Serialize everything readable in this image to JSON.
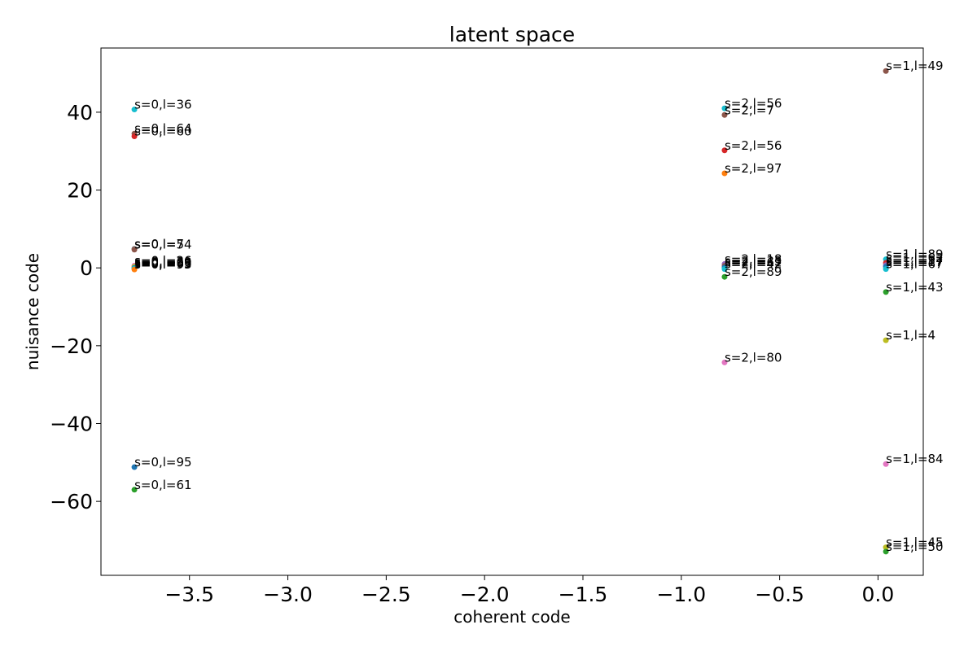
{
  "chart_data": {
    "type": "scatter",
    "title": "latent space",
    "xlabel": "coherent code",
    "ylabel": "nuisance code",
    "xlim": [
      -3.95,
      0.23
    ],
    "ylim": [
      -79,
      56.5
    ],
    "xticks": [
      -3.5,
      -3.0,
      -2.5,
      -2.0,
      -1.5,
      -1.0,
      -0.5,
      0.0
    ],
    "xtick_labels": [
      "−3.5",
      "−3.0",
      "−2.5",
      "−2.0",
      "−1.5",
      "−1.0",
      "−0.5",
      "0.0"
    ],
    "yticks": [
      40,
      20,
      0,
      -20,
      -40,
      -60
    ],
    "ytick_labels": [
      "40",
      "20",
      "0",
      "−20",
      "−40",
      "−60"
    ],
    "grid": false,
    "points": [
      {
        "x": -3.78,
        "y": 40.7,
        "label": "s=0,l=36",
        "color": "#17becf"
      },
      {
        "x": -3.78,
        "y": 34.5,
        "label": "s=0,l=64",
        "color": "#8c564b"
      },
      {
        "x": -3.78,
        "y": 33.8,
        "label": "s=0,l=60",
        "color": "#d62728"
      },
      {
        "x": -3.78,
        "y": 4.9,
        "label": "s=0,l=7",
        "color": "#7f7f7f"
      },
      {
        "x": -3.78,
        "y": 4.7,
        "label": "s=0,l=54",
        "color": "#8c564b"
      },
      {
        "x": -3.78,
        "y": 0.6,
        "label": "s=0,l=26",
        "color": "#e377c2"
      },
      {
        "x": -3.78,
        "y": 0.3,
        "label": "s=0,l=39",
        "color": "#bcbd22"
      },
      {
        "x": -3.78,
        "y": 0.0,
        "label": "s=0,l=96",
        "color": "#1f77b4"
      },
      {
        "x": -3.78,
        "y": -0.2,
        "label": "s=0,l=65",
        "color": "#17becf"
      },
      {
        "x": -3.78,
        "y": -0.4,
        "label": "s=0,l=93",
        "color": "#ff7f0e"
      },
      {
        "x": -3.78,
        "y": -51.2,
        "label": "s=0,l=95",
        "color": "#1f77b4"
      },
      {
        "x": -3.78,
        "y": -57.0,
        "label": "s=0,l=61",
        "color": "#2ca02c"
      },
      {
        "x": -0.78,
        "y": 41.0,
        "label": "s=2,l=56",
        "color": "#17becf"
      },
      {
        "x": -0.78,
        "y": 39.3,
        "label": "s=2,l=7",
        "color": "#8c564b"
      },
      {
        "x": -0.78,
        "y": 30.2,
        "label": "s=2,l=56",
        "color": "#d62728"
      },
      {
        "x": -0.78,
        "y": 24.3,
        "label": "s=2,l=97",
        "color": "#ff7f0e"
      },
      {
        "x": -0.78,
        "y": 1.0,
        "label": "s=2,l=18",
        "color": "#9467bd"
      },
      {
        "x": -0.78,
        "y": 0.5,
        "label": "s=2,l=33",
        "color": "#8c564b"
      },
      {
        "x": -0.78,
        "y": 0.1,
        "label": "s=2,l=61",
        "color": "#1f77b4"
      },
      {
        "x": -0.78,
        "y": -0.3,
        "label": "s=2,l=42",
        "color": "#17becf"
      },
      {
        "x": -0.78,
        "y": -2.3,
        "label": "s=2,l=89",
        "color": "#2ca02c"
      },
      {
        "x": -0.78,
        "y": -24.3,
        "label": "s=2,l=80",
        "color": "#e377c2"
      },
      {
        "x": 0.04,
        "y": 50.6,
        "label": "s=1,l=49",
        "color": "#8c564b"
      },
      {
        "x": 0.04,
        "y": 2.2,
        "label": "s=1,l=89",
        "color": "#17becf"
      },
      {
        "x": 0.04,
        "y": 1.3,
        "label": "s=1,l=62",
        "color": "#d62728"
      },
      {
        "x": 0.04,
        "y": 0.7,
        "label": "s=1,l=37",
        "color": "#9467bd"
      },
      {
        "x": 0.04,
        "y": 0.3,
        "label": "s=1,l=17",
        "color": "#1f77b4"
      },
      {
        "x": 0.04,
        "y": -0.3,
        "label": "s=1,l=67",
        "color": "#17becf"
      },
      {
        "x": 0.04,
        "y": -6.2,
        "label": "s=1,l=43",
        "color": "#2ca02c"
      },
      {
        "x": 0.04,
        "y": -18.6,
        "label": "s=1,l=4",
        "color": "#bcbd22"
      },
      {
        "x": 0.04,
        "y": -50.4,
        "label": "s=1,l=84",
        "color": "#e377c2"
      },
      {
        "x": 0.04,
        "y": -71.8,
        "label": "s=1,l=45",
        "color": "#bcbd22"
      },
      {
        "x": 0.04,
        "y": -72.9,
        "label": "s=1,l=50",
        "color": "#2ca02c"
      }
    ]
  }
}
